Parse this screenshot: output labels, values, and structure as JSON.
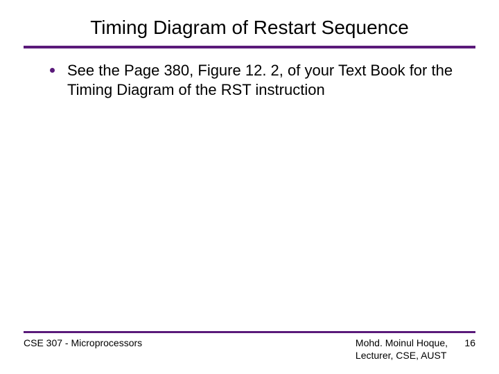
{
  "slide": {
    "title": "Timing Diagram of Restart Sequence",
    "title_fontsize": 28,
    "title_color": "#000000",
    "rule_color": "#5a1a7a",
    "background_color": "#ffffff",
    "bullet": {
      "dot_color": "#5a1a7a",
      "text": "See the Page 380, Figure 12. 2,  of your Text Book for the Timing Diagram of the RST instruction",
      "text_fontsize": 22,
      "text_color": "#000000"
    }
  },
  "footer": {
    "rule_color": "#5a1a7a",
    "course": "CSE 307 - Microprocessors",
    "author_line1": "Mohd. Moinul Hoque,",
    "author_line2": "Lecturer, CSE, AUST",
    "page_number": "16",
    "fontsize": 14,
    "text_color": "#000000"
  }
}
